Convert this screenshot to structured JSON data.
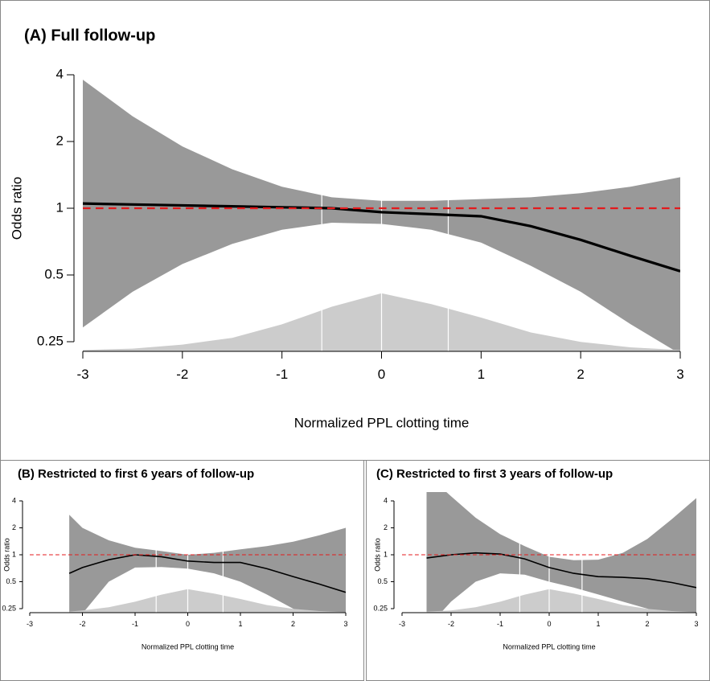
{
  "chart_data": [
    {
      "type": "line",
      "title": "(A) Full follow-up",
      "xlabel": "Normalized PPL clotting time",
      "ylabel": "Odds ratio",
      "log_scale": true,
      "xlim": [
        -3,
        3
      ],
      "xticks": [
        -3,
        -2,
        -1,
        0,
        1,
        2,
        3
      ],
      "ylim": [
        0.25,
        4
      ],
      "yticks": [
        0.25,
        0.5,
        1,
        2,
        4
      ],
      "x": [
        -3,
        -2.5,
        -2,
        -1.5,
        -1,
        -0.5,
        0,
        0.5,
        1,
        1.5,
        2,
        2.5,
        3
      ],
      "values": [
        1.05,
        1.04,
        1.03,
        1.02,
        1.01,
        1.0,
        0.96,
        0.94,
        0.92,
        0.83,
        0.72,
        0.61,
        0.52
      ],
      "upper": [
        3.8,
        2.6,
        1.9,
        1.5,
        1.25,
        1.12,
        1.08,
        1.08,
        1.1,
        1.12,
        1.17,
        1.25,
        1.38
      ],
      "lower": [
        0.29,
        0.42,
        0.56,
        0.69,
        0.8,
        0.86,
        0.85,
        0.8,
        0.7,
        0.55,
        0.42,
        0.3,
        0.22
      ],
      "density": [
        0.01,
        0.02,
        0.05,
        0.1,
        0.2,
        0.33,
        0.43,
        0.35,
        0.25,
        0.14,
        0.07,
        0.03,
        0.01
      ],
      "vlines": [
        -0.6,
        0,
        0.67
      ],
      "ref_line": 1,
      "color": "#000000",
      "band_color": "#999999",
      "density_color": "#cccccc",
      "ref_color": "#e41a1c"
    },
    {
      "type": "line",
      "title": "(B) Restricted to first 6 years of follow-up",
      "xlabel": "Normalized PPL clotting time",
      "ylabel": "Odds ratio",
      "log_scale": true,
      "xlim": [
        -3,
        3
      ],
      "xticks": [
        -3,
        -2,
        -1,
        0,
        1,
        2,
        3
      ],
      "ylim": [
        0.25,
        4
      ],
      "yticks": [
        0.25,
        0.5,
        1,
        2,
        4
      ],
      "x": [
        -2.25,
        -2,
        -1.5,
        -1,
        -0.5,
        0,
        0.5,
        1,
        1.5,
        2,
        2.5,
        3
      ],
      "values": [
        0.62,
        0.72,
        0.88,
        1.0,
        0.95,
        0.85,
        0.82,
        0.82,
        0.7,
        0.57,
        0.47,
        0.38
      ],
      "upper": [
        2.8,
        2.0,
        1.45,
        1.2,
        1.1,
        1.0,
        1.05,
        1.15,
        1.25,
        1.4,
        1.65,
        2.0
      ],
      "lower": [
        0.15,
        0.22,
        0.5,
        0.72,
        0.73,
        0.7,
        0.62,
        0.5,
        0.36,
        0.25,
        0.17,
        0.1
      ],
      "density": [
        0.02,
        0.04,
        0.1,
        0.2,
        0.33,
        0.43,
        0.35,
        0.25,
        0.14,
        0.07,
        0.03,
        0.01
      ],
      "vlines": [
        -0.6,
        0,
        0.67
      ],
      "ref_line": 1,
      "color": "#000000",
      "band_color": "#999999",
      "density_color": "#cccccc",
      "ref_color": "#e41a1c"
    },
    {
      "type": "line",
      "title": "(C) Restricted to first 3 years of follow-up",
      "xlabel": "Normalized PPL clotting time",
      "ylabel": "Odds ratio",
      "log_scale": true,
      "xlim": [
        -3,
        3
      ],
      "xticks": [
        -3,
        -2,
        -1,
        0,
        1,
        2,
        3
      ],
      "ylim": [
        0.25,
        4
      ],
      "yticks": [
        0.25,
        0.5,
        1,
        2,
        4
      ],
      "x": [
        -2.5,
        -2,
        -1.5,
        -1,
        -0.5,
        0,
        0.5,
        1,
        1.5,
        2,
        2.5,
        3
      ],
      "values": [
        0.92,
        1.0,
        1.05,
        1.02,
        0.9,
        0.72,
        0.62,
        0.57,
        0.56,
        0.54,
        0.49,
        0.43
      ],
      "upper": [
        8,
        4.5,
        2.6,
        1.7,
        1.25,
        0.95,
        0.87,
        0.88,
        1.05,
        1.5,
        2.5,
        4.3
      ],
      "lower": [
        0.15,
        0.3,
        0.5,
        0.62,
        0.6,
        0.5,
        0.43,
        0.36,
        0.3,
        0.25,
        0.2,
        0.16
      ],
      "density": [
        0.02,
        0.04,
        0.1,
        0.2,
        0.33,
        0.43,
        0.35,
        0.25,
        0.14,
        0.07,
        0.03,
        0.01
      ],
      "vlines": [
        -0.6,
        0,
        0.67
      ],
      "ref_line": 1,
      "color": "#000000",
      "band_color": "#999999",
      "density_color": "#cccccc",
      "ref_color": "#e41a1c"
    }
  ]
}
